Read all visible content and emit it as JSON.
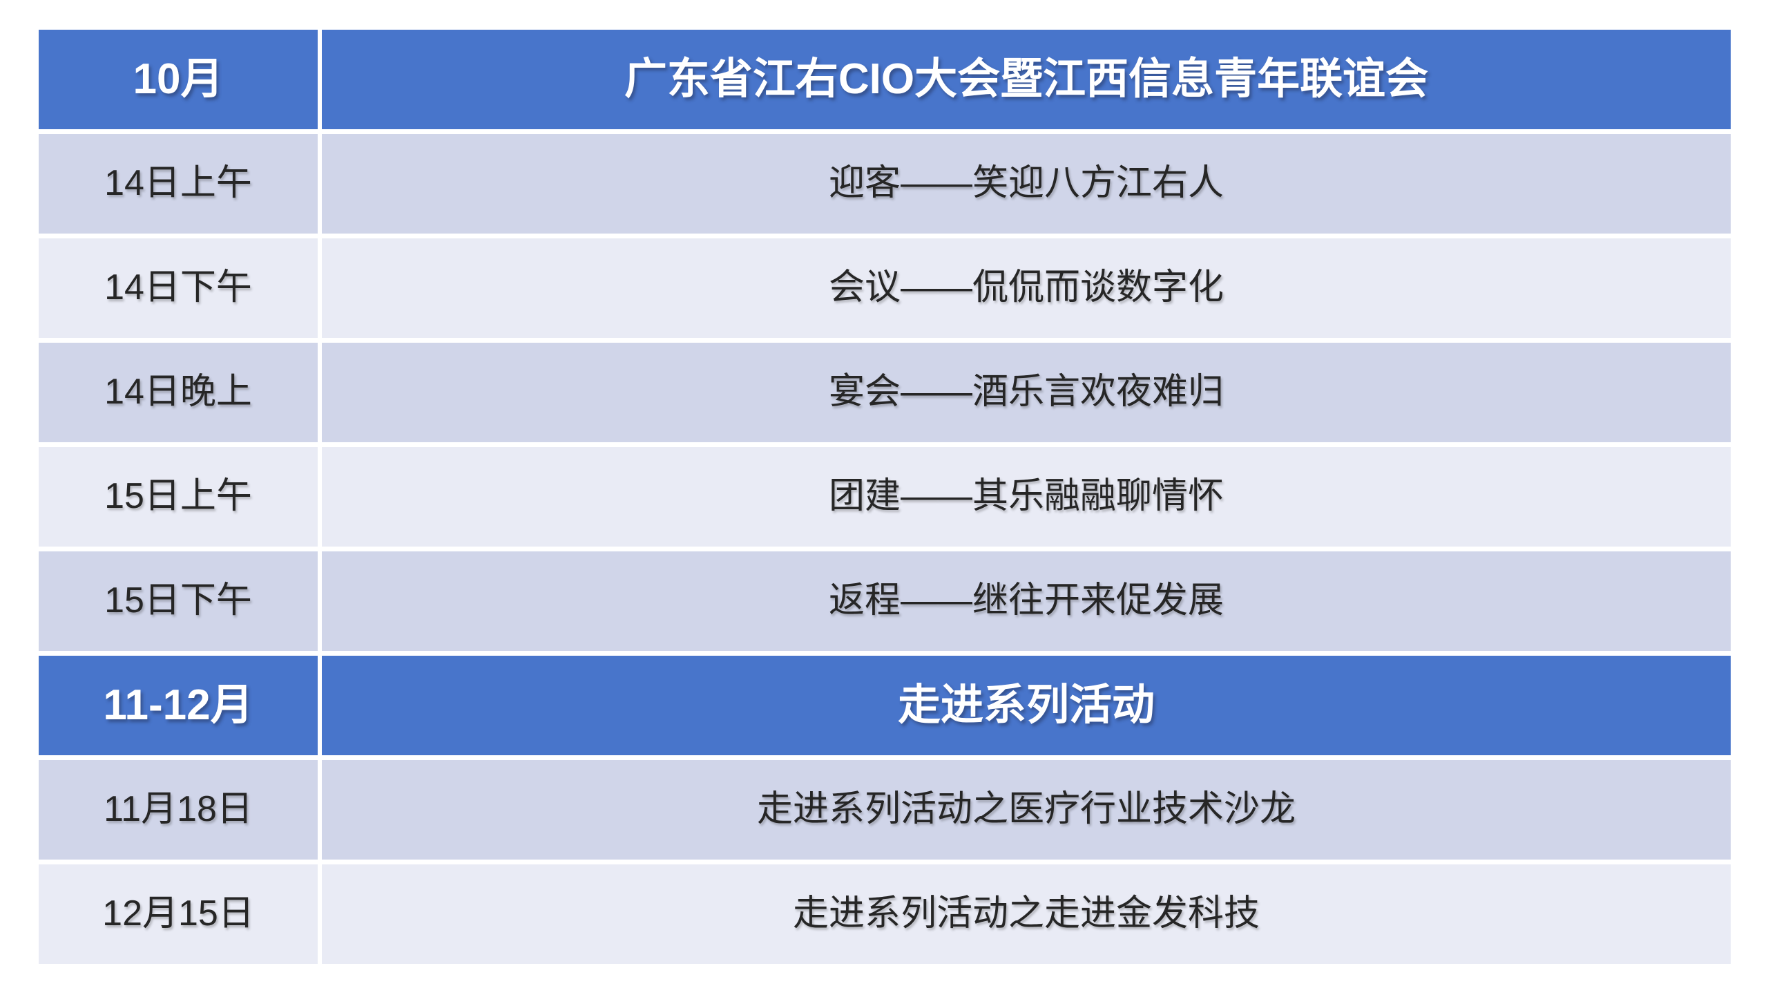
{
  "colors": {
    "header_bg": "#4875CB",
    "band_dark": "#D0D5E9",
    "band_light": "#E9EBF5",
    "header_text": "#FFFFFF",
    "body_text": "#262626",
    "page_bg": "#FFFFFF"
  },
  "table": {
    "sections": [
      {
        "header": {
          "period": "10月",
          "title": "广东省江右CIO大会暨江西信息青年联谊会"
        },
        "rows": [
          {
            "time": "14日上午",
            "activity": "迎客——笑迎八方江右人"
          },
          {
            "time": "14日下午",
            "activity": "会议——侃侃而谈数字化"
          },
          {
            "time": "14日晚上",
            "activity": "宴会——酒乐言欢夜难归"
          },
          {
            "time": "15日上午",
            "activity": "团建——其乐融融聊情怀"
          },
          {
            "time": "15日下午",
            "activity": "返程——继往开来促发展"
          }
        ]
      },
      {
        "header": {
          "period": "11-12月",
          "title": "走进系列活动"
        },
        "rows": [
          {
            "time": "11月18日",
            "activity": "走进系列活动之医疗行业技术沙龙"
          },
          {
            "time": "12月15日",
            "activity": "走进系列活动之走进金发科技"
          }
        ]
      }
    ]
  }
}
